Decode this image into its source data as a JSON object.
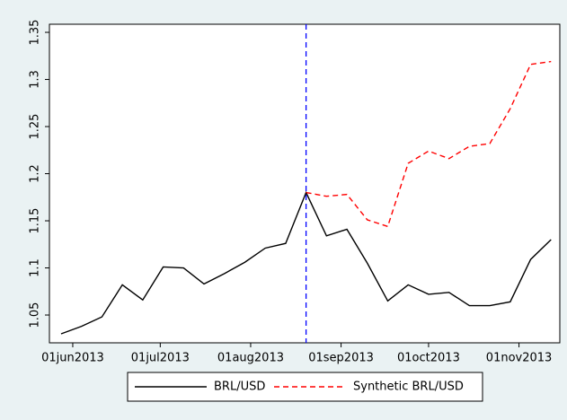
{
  "chart_data": {
    "type": "line",
    "x": [
      "2013-05-28",
      "2013-06-04",
      "2013-06-11",
      "2013-06-18",
      "2013-06-25",
      "2013-07-02",
      "2013-07-09",
      "2013-07-16",
      "2013-07-23",
      "2013-07-30",
      "2013-08-06",
      "2013-08-13",
      "2013-08-20",
      "2013-08-27",
      "2013-09-03",
      "2013-09-10",
      "2013-09-17",
      "2013-09-24",
      "2013-10-01",
      "2013-10-08",
      "2013-10-15",
      "2013-10-22",
      "2013-10-29",
      "2013-11-05",
      "2013-11-12"
    ],
    "series": [
      {
        "name": "BRL/USD",
        "color": "#000000",
        "dash": "none",
        "values": [
          1.03,
          1.038,
          1.048,
          1.082,
          1.066,
          1.101,
          1.1,
          1.083,
          1.094,
          1.106,
          1.121,
          1.126,
          1.18,
          1.134,
          1.141,
          1.105,
          1.065,
          1.082,
          1.072,
          1.074,
          1.06,
          1.06,
          1.064,
          1.109,
          1.13
        ]
      },
      {
        "name": "Synthetic BRL/USD",
        "color": "#ff0000",
        "dash": "6 4",
        "values": [
          null,
          null,
          null,
          null,
          null,
          null,
          null,
          null,
          null,
          null,
          null,
          null,
          1.18,
          1.176,
          1.178,
          1.151,
          1.144,
          1.211,
          1.224,
          1.216,
          1.229,
          1.232,
          1.269,
          1.316,
          1.319
        ]
      }
    ],
    "xlim": [
      "2013-05-24",
      "2013-11-15"
    ],
    "xticks": [
      {
        "value": "2013-06-01",
        "label": "01jun2013"
      },
      {
        "value": "2013-07-01",
        "label": "01jul2013"
      },
      {
        "value": "2013-08-01",
        "label": "01aug2013"
      },
      {
        "value": "2013-09-01",
        "label": "01sep2013"
      },
      {
        "value": "2013-10-01",
        "label": "01oct2013"
      },
      {
        "value": "2013-11-01",
        "label": "01nov2013"
      }
    ],
    "ylim": [
      1.0205,
      1.3586
    ],
    "yticks": [
      1.05,
      1.1,
      1.15,
      1.2,
      1.25,
      1.3,
      1.35
    ],
    "xline": "2013-08-20",
    "xline_color": "#0000ff",
    "grid": false
  }
}
